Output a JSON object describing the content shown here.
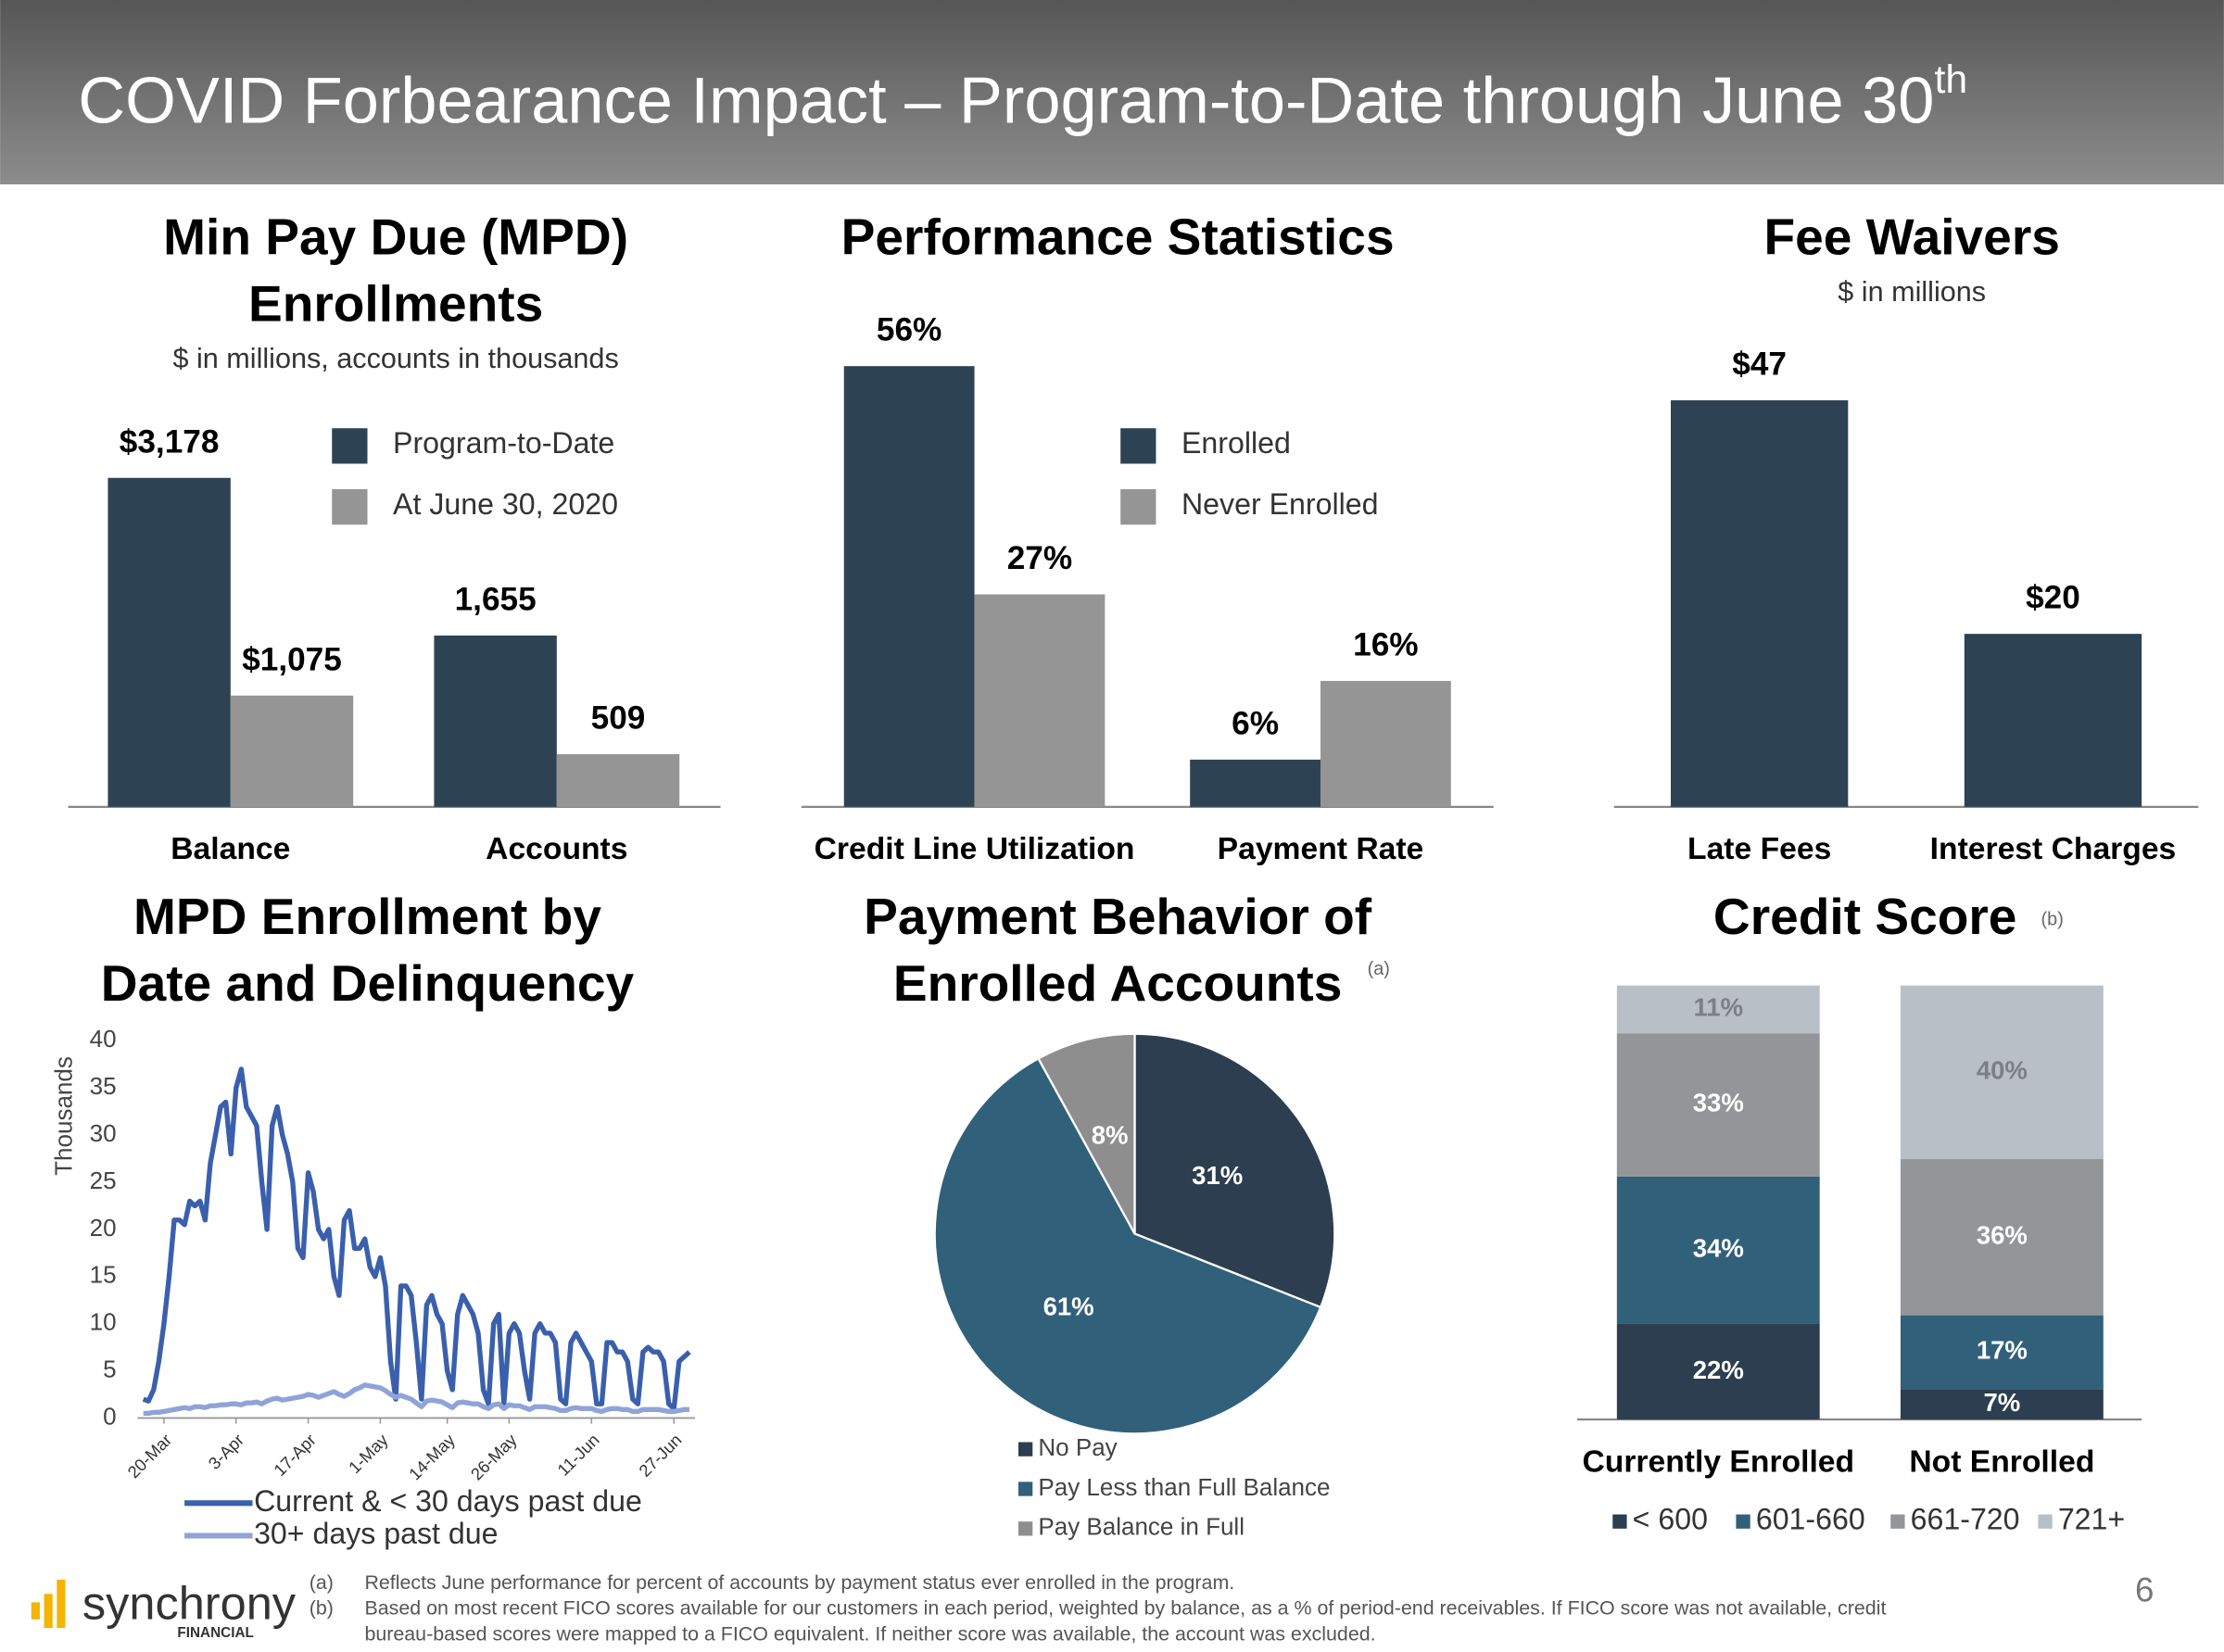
{
  "header": {
    "title": "COVID Forbearance Impact – Program-to-Date through June 30",
    "title_superscript": "th"
  },
  "chart_data": [
    {
      "type": "bar",
      "title": [
        "Min Pay Due (MPD)",
        "Enrollments"
      ],
      "subtitle": "$ in millions, accounts in thousands",
      "categories": [
        "Balance",
        "Accounts"
      ],
      "series": [
        {
          "name": "Program-to-Date",
          "color": "#2d4354",
          "values": [
            3178,
            1655
          ],
          "value_labels": [
            "$3,178",
            "1,655"
          ]
        },
        {
          "name": "At June 30, 2020",
          "color": "#959595",
          "values": [
            1075,
            509
          ],
          "value_labels": [
            "$1,075",
            "509"
          ]
        }
      ]
    },
    {
      "type": "bar",
      "title": [
        "Performance Statistics"
      ],
      "categories": [
        "Credit Line Utilization",
        "Payment Rate"
      ],
      "series": [
        {
          "name": "Enrolled",
          "color": "#2d4354",
          "values": [
            56,
            6
          ],
          "value_labels": [
            "56%",
            "6%"
          ]
        },
        {
          "name": "Never Enrolled",
          "color": "#959595",
          "values": [
            27,
            16
          ],
          "value_labels": [
            "27%",
            "16%"
          ]
        }
      ]
    },
    {
      "type": "bar",
      "title": [
        "Fee Waivers"
      ],
      "subtitle": "$ in millions",
      "categories": [
        "Late Fees",
        "Interest Charges"
      ],
      "values": [
        47,
        20
      ],
      "value_labels": [
        "$47",
        "$20"
      ],
      "color": "#2d4354"
    },
    {
      "type": "line",
      "title": [
        "MPD Enrollment by",
        "Date and Delinquency"
      ],
      "y_label": "Thousands",
      "ylim": [
        0,
        40
      ],
      "yticks": [
        0,
        5,
        10,
        15,
        20,
        25,
        30,
        35,
        40
      ],
      "categories": [
        null,
        null,
        null,
        null,
        "20-Mar",
        null,
        null,
        null,
        null,
        null,
        null,
        null,
        null,
        null,
        null,
        null,
        null,
        null,
        "3-Apr",
        null,
        null,
        null,
        null,
        null,
        null,
        null,
        null,
        null,
        null,
        null,
        null,
        null,
        "17-Apr",
        null,
        null,
        null,
        null,
        null,
        null,
        null,
        null,
        null,
        null,
        null,
        null,
        null,
        "1-May",
        null,
        null,
        null,
        null,
        null,
        null,
        null,
        null,
        null,
        null,
        null,
        null,
        "14-May",
        null,
        null,
        null,
        null,
        null,
        null,
        null,
        null,
        null,
        null,
        null,
        "26-May",
        null,
        null,
        null,
        null,
        null,
        null,
        null,
        null,
        null,
        null,
        null,
        null,
        null,
        null,
        null,
        "11-Jun",
        null,
        null,
        null,
        null,
        null,
        null,
        null,
        null,
        null,
        null,
        null,
        null,
        null,
        null,
        null,
        "27-Jun",
        null,
        null,
        null
      ],
      "series": [
        {
          "name": "Current & < 30 days past due",
          "color": "#3a5fad",
          "values": [
            2,
            1.8,
            3,
            6,
            10,
            15,
            21,
            21,
            20.5,
            23,
            22.5,
            23,
            21,
            27,
            30,
            33,
            33.5,
            28,
            35,
            37,
            33,
            32,
            31,
            25,
            20,
            31,
            33,
            30,
            28,
            25,
            18,
            17,
            26,
            24,
            20,
            19,
            20,
            15,
            13,
            21,
            22,
            18,
            18,
            19,
            16,
            15,
            17,
            14,
            6,
            2,
            14,
            14,
            13,
            8,
            2,
            12,
            13,
            11,
            10,
            5,
            3,
            11,
            13,
            12,
            11,
            9,
            3,
            1.5,
            10,
            11,
            1.5,
            9,
            10,
            9,
            5,
            2,
            9,
            10,
            9,
            9,
            8,
            2,
            1.5,
            8,
            9,
            8,
            7,
            6,
            1.5,
            1.5,
            8,
            8,
            7,
            7,
            6,
            2,
            1.5,
            7,
            7.5,
            7,
            7,
            6,
            1.5,
            1,
            6,
            6.5,
            7
          ]
        },
        {
          "name": "30+ days past due",
          "color": "#8fa3d9",
          "values": [
            0.5,
            0.5,
            0.6,
            0.6,
            0.7,
            0.8,
            0.9,
            1,
            1.1,
            1,
            1.2,
            1.2,
            1.1,
            1.3,
            1.3,
            1.4,
            1.4,
            1.5,
            1.5,
            1.4,
            1.6,
            1.6,
            1.7,
            1.5,
            1.8,
            2,
            2.1,
            1.9,
            2,
            2.1,
            2.2,
            2.3,
            2.5,
            2.4,
            2.2,
            2.4,
            2.6,
            2.8,
            2.5,
            2.3,
            2.6,
            3,
            3.2,
            3.5,
            3.4,
            3.3,
            3.2,
            2.9,
            2.5,
            2.2,
            2.4,
            2.2,
            2,
            1.6,
            1.2,
            1.8,
            1.9,
            1.8,
            1.7,
            1.4,
            1.1,
            1.6,
            1.7,
            1.6,
            1.5,
            1.5,
            1.2,
            1,
            1.4,
            1.5,
            1,
            1.4,
            1.3,
            1.3,
            1.1,
            0.9,
            1.2,
            1.2,
            1.2,
            1.1,
            1,
            0.8,
            0.8,
            1,
            1.1,
            1,
            1,
            1,
            0.8,
            0.7,
            0.9,
            1,
            1,
            0.9,
            0.9,
            0.7,
            0.7,
            0.9,
            0.9,
            0.9,
            0.9,
            0.8,
            0.7,
            0.7,
            0.8,
            0.9,
            0.9
          ]
        }
      ]
    },
    {
      "type": "pie",
      "title": [
        "Payment Behavior of",
        "Enrolled Accounts"
      ],
      "title_note": "(a)",
      "categories": [
        "No Pay",
        "Pay Less than Full Balance",
        "Pay Balance in Full"
      ],
      "values": [
        31,
        61,
        8
      ],
      "value_labels": [
        "31%",
        "61%",
        "8%"
      ],
      "colors": [
        "#2c3e4f",
        "#31607a",
        "#8e8e8e"
      ]
    },
    {
      "type": "stacked_bar",
      "title": [
        "Credit Score"
      ],
      "title_note": "(b)",
      "categories": [
        "Currently Enrolled",
        "Not Enrolled"
      ],
      "series": [
        {
          "name": "< 600",
          "color": "#2c3e4f",
          "values": [
            22,
            7
          ],
          "value_labels": [
            "22%",
            "7%"
          ]
        },
        {
          "name": "601-660",
          "color": "#31607a",
          "values": [
            34,
            17
          ],
          "value_labels": [
            "34%",
            "17%"
          ]
        },
        {
          "name": "661-720",
          "color": "#949599",
          "values": [
            33,
            36
          ],
          "value_labels": [
            "33%",
            "36%"
          ]
        },
        {
          "name": "721+",
          "color": "#b8bfc6",
          "values": [
            11,
            40
          ],
          "value_labels": [
            "11%",
            "40%"
          ]
        }
      ]
    }
  ],
  "footer": {
    "logo": "synchrony",
    "logo_sub": "FINANCIAL",
    "page_number": 6,
    "footnotes": [
      {
        "marker": "(a)",
        "lines": [
          "Reflects June performance for percent of accounts by payment status ever enrolled in the program."
        ]
      },
      {
        "marker": "(b)",
        "lines": [
          "Based on most recent FICO scores available for our customers in each period, weighted by balance, as a % of period-end receivables. If FICO score was not available, credit",
          "bureau-based scores were mapped to a FICO equivalent. If neither score was available, the account was excluded."
        ]
      }
    ]
  }
}
